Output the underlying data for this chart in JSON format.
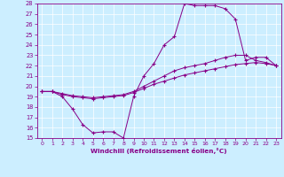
{
  "xlabel": "Windchill (Refroidissement éolien,°C)",
  "xlim": [
    -0.5,
    23.5
  ],
  "ylim": [
    15,
    28
  ],
  "xticks": [
    0,
    1,
    2,
    3,
    4,
    5,
    6,
    7,
    8,
    9,
    10,
    11,
    12,
    13,
    14,
    15,
    16,
    17,
    18,
    19,
    20,
    21,
    22,
    23
  ],
  "yticks": [
    15,
    16,
    17,
    18,
    19,
    20,
    21,
    22,
    23,
    24,
    25,
    26,
    27,
    28
  ],
  "bg_color": "#cceeff",
  "line_color": "#880088",
  "line1_x": [
    0,
    1,
    2,
    3,
    4,
    5,
    6,
    7,
    8,
    9,
    10,
    11,
    12,
    13,
    14,
    15,
    16,
    17,
    18,
    19,
    20,
    21,
    22,
    23
  ],
  "line1_y": [
    19.5,
    19.5,
    19.0,
    17.8,
    16.3,
    15.5,
    15.6,
    15.6,
    15.0,
    19.0,
    21.0,
    22.2,
    24.0,
    24.8,
    28.0,
    27.8,
    27.8,
    27.8,
    27.5,
    26.5,
    22.5,
    22.8,
    22.8,
    22.0
  ],
  "line2_x": [
    0,
    1,
    2,
    3,
    4,
    5,
    6,
    7,
    8,
    9,
    10,
    11,
    12,
    13,
    14,
    15,
    16,
    17,
    18,
    19,
    20,
    21,
    22,
    23
  ],
  "line2_y": [
    19.5,
    19.5,
    19.3,
    19.1,
    19.0,
    18.9,
    19.0,
    19.1,
    19.2,
    19.5,
    20.0,
    20.5,
    21.0,
    21.5,
    21.8,
    22.0,
    22.2,
    22.5,
    22.8,
    23.0,
    23.0,
    22.5,
    22.3,
    22.0
  ],
  "line3_x": [
    0,
    1,
    2,
    3,
    4,
    5,
    6,
    7,
    8,
    9,
    10,
    11,
    12,
    13,
    14,
    15,
    16,
    17,
    18,
    19,
    20,
    21,
    22,
    23
  ],
  "line3_y": [
    19.5,
    19.5,
    19.2,
    19.0,
    18.9,
    18.8,
    18.9,
    19.0,
    19.1,
    19.4,
    19.8,
    20.2,
    20.5,
    20.8,
    21.1,
    21.3,
    21.5,
    21.7,
    21.9,
    22.1,
    22.2,
    22.3,
    22.2,
    22.0
  ]
}
